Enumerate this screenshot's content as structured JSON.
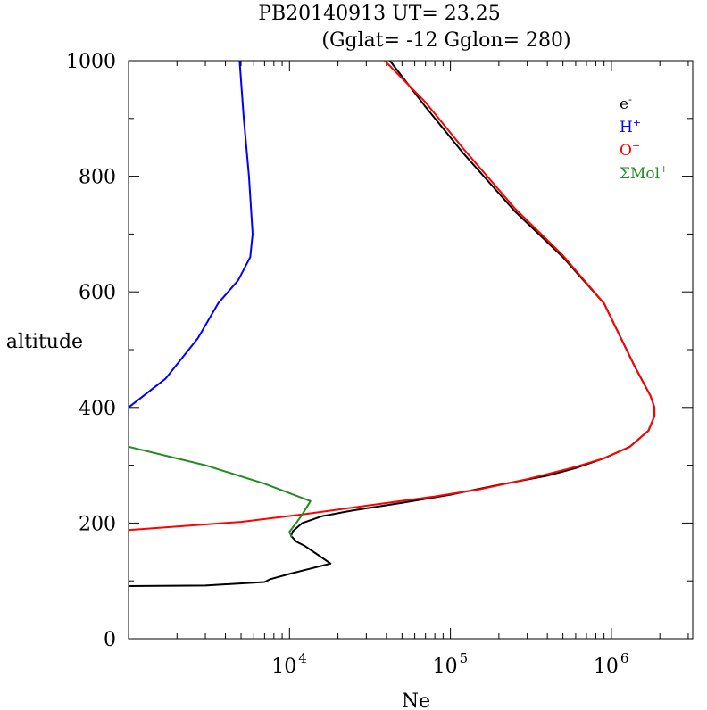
{
  "chart_data": {
    "type": "line",
    "title_line1": "PB20140913   UT=  23.25",
    "title_line2": "(Gglat= -12   Gglon=  280)",
    "xlabel": "Ne",
    "ylabel": "altitude",
    "x_scale": "log",
    "xlim": [
      1000,
      3200000
    ],
    "ylim": [
      0,
      1000
    ],
    "x_tick_labels": [
      {
        "value": 10000,
        "base": "10",
        "exp": "4"
      },
      {
        "value": 100000,
        "base": "10",
        "exp": "5"
      },
      {
        "value": 1000000,
        "base": "10",
        "exp": "6"
      }
    ],
    "y_tick_labels": [
      "0",
      "200",
      "400",
      "600",
      "800",
      "1000"
    ],
    "y_ticks": [
      0,
      200,
      400,
      600,
      800,
      1000
    ],
    "legend_position": "top-right",
    "series": [
      {
        "name": "e-",
        "label_base": "e",
        "label_sup": "-",
        "color": "#000000",
        "points": [
          [
            1000,
            91
          ],
          [
            3000,
            92
          ],
          [
            7000,
            98
          ],
          [
            7600,
            103
          ],
          [
            10000,
            112
          ],
          [
            13000,
            120
          ],
          [
            18000,
            130
          ],
          [
            15000,
            145
          ],
          [
            12500,
            160
          ],
          [
            11000,
            168
          ],
          [
            10200,
            178
          ],
          [
            10500,
            186
          ],
          [
            12000,
            200
          ],
          [
            16000,
            212
          ],
          [
            25000,
            222
          ],
          [
            50000,
            235
          ],
          [
            100000,
            249
          ],
          [
            200000,
            266
          ],
          [
            400000,
            282
          ],
          [
            600000,
            295
          ],
          [
            900000,
            312
          ],
          [
            1300000,
            332
          ],
          [
            1700000,
            360
          ],
          [
            1850000,
            385
          ],
          [
            1850000,
            400
          ],
          [
            1750000,
            420
          ],
          [
            1400000,
            470
          ],
          [
            900000,
            580
          ],
          [
            500000,
            660
          ],
          [
            250000,
            740
          ],
          [
            120000,
            840
          ],
          [
            70000,
            920
          ],
          [
            42000,
            1000
          ]
        ]
      },
      {
        "name": "H+",
        "label_base": "H",
        "label_sup": "+",
        "color": "#0000ff",
        "points": [
          [
            1000,
            400
          ],
          [
            1700,
            450
          ],
          [
            2700,
            520
          ],
          [
            3600,
            580
          ],
          [
            4800,
            620
          ],
          [
            5700,
            660
          ],
          [
            5900,
            700
          ],
          [
            5600,
            800
          ],
          [
            5200,
            900
          ],
          [
            4900,
            1000
          ]
        ]
      },
      {
        "name": "O+",
        "label_base": "O",
        "label_sup": "+",
        "color": "#ff0000",
        "points": [
          [
            1000,
            188
          ],
          [
            5000,
            202
          ],
          [
            12000,
            215
          ],
          [
            30000,
            230
          ],
          [
            80000,
            246
          ],
          [
            150000,
            258
          ],
          [
            300000,
            276
          ],
          [
            600000,
            297
          ],
          [
            900000,
            312
          ],
          [
            1300000,
            332
          ],
          [
            1700000,
            360
          ],
          [
            1850000,
            385
          ],
          [
            1850000,
            400
          ],
          [
            1750000,
            420
          ],
          [
            1400000,
            470
          ],
          [
            900000,
            580
          ],
          [
            500000,
            663
          ],
          [
            250000,
            745
          ],
          [
            120000,
            848
          ],
          [
            70000,
            928
          ],
          [
            39000,
            1000
          ]
        ]
      },
      {
        "name": "ΣMol+",
        "label_base": "ΣMol",
        "label_sup": "+",
        "color": "#228b22",
        "points": [
          [
            1000,
            332
          ],
          [
            3000,
            300
          ],
          [
            7000,
            268
          ],
          [
            13500,
            238
          ],
          [
            12000,
            215
          ],
          [
            11000,
            200
          ],
          [
            10000,
            185
          ],
          [
            10300,
            176
          ]
        ]
      }
    ]
  }
}
